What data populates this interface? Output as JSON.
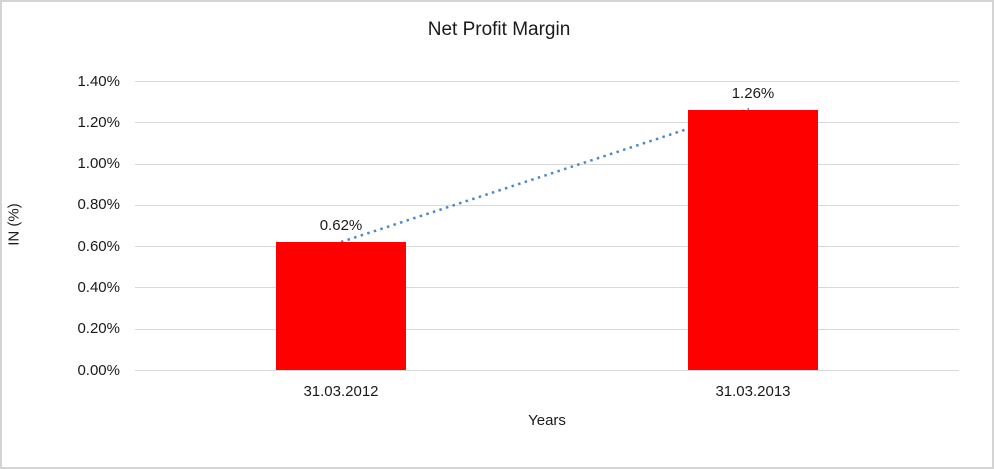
{
  "chart_data": {
    "type": "bar",
    "title": "Net Profit Margin",
    "xlabel": "Years",
    "ylabel": "IN (%)",
    "categories": [
      "31.03.2012",
      "31.03.2013"
    ],
    "values": [
      0.62,
      1.26
    ],
    "data_labels": [
      "0.62%",
      "1.26%"
    ],
    "y_ticks": [
      {
        "label": "0.00%",
        "value": 0.0
      },
      {
        "label": "0.20%",
        "value": 0.2
      },
      {
        "label": "0.40%",
        "value": 0.4
      },
      {
        "label": "0.60%",
        "value": 0.6
      },
      {
        "label": "0.80%",
        "value": 0.8
      },
      {
        "label": "1.00%",
        "value": 1.0
      },
      {
        "label": "1.20%",
        "value": 1.2
      },
      {
        "label": "1.40%",
        "value": 1.4
      }
    ],
    "ylim": [
      0,
      1.4
    ],
    "grid": true,
    "legend": false,
    "bar_color": "#ff0000",
    "gridline_color": "#d9d9d9",
    "text_color": "#1a1a1a",
    "frame_border_color": "#d4d4d4",
    "background_color": "#ffffff",
    "trendline": {
      "type": "linear",
      "style": "dotted",
      "color": "#4e87c5",
      "from_value": 0.62,
      "to_value": 1.26
    }
  }
}
